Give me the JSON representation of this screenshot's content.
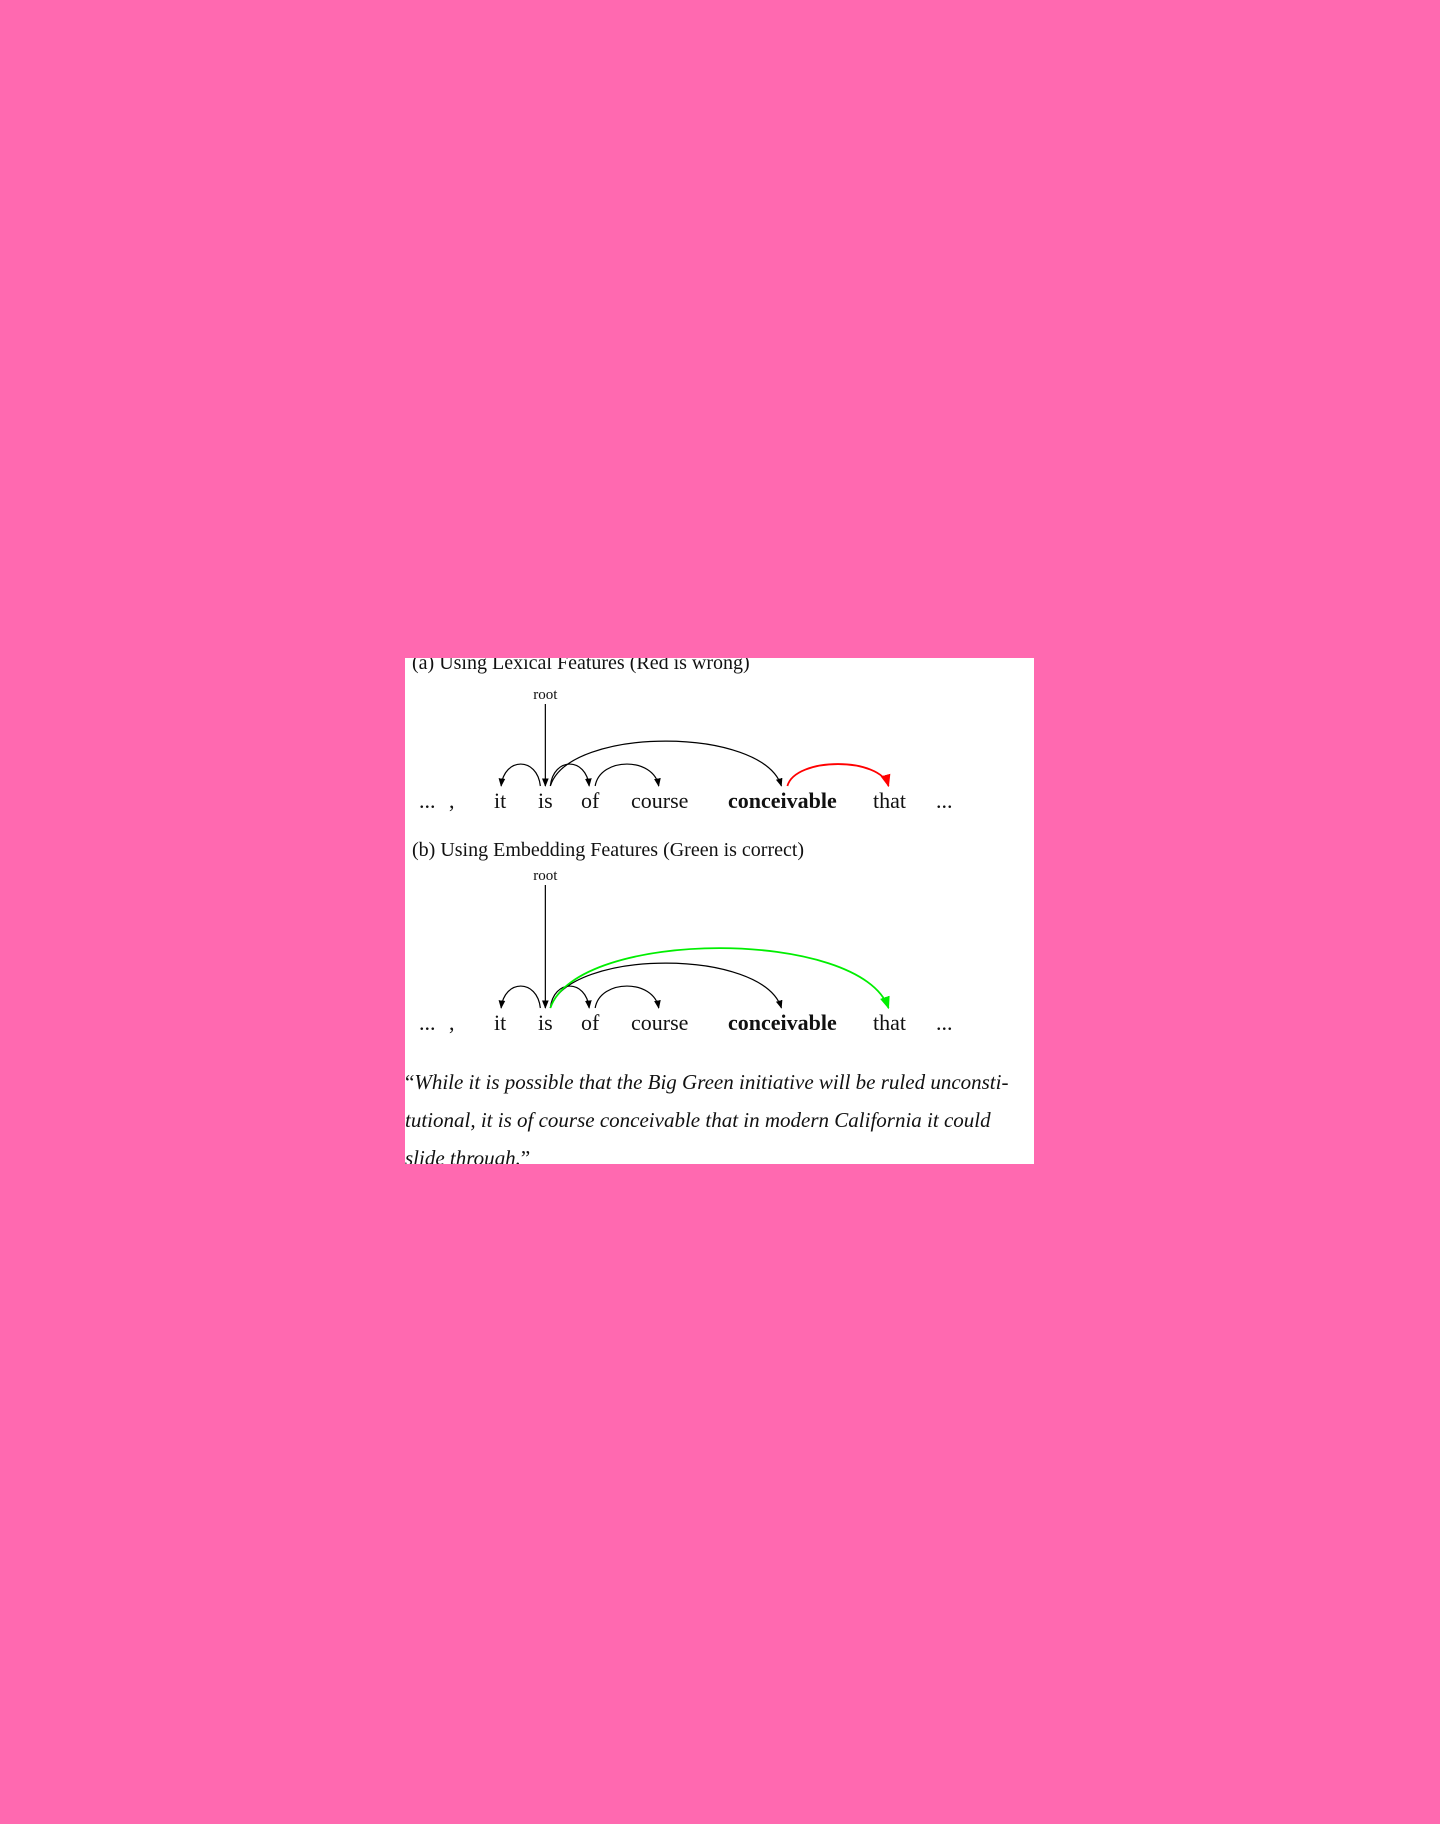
{
  "panel_a": {
    "caption": "(a) Using Lexical Features (Red is wrong)",
    "root_label": "root",
    "tokens": [
      "...",
      ",",
      "it",
      "is",
      "of",
      "course",
      "conceivable",
      "that",
      "..."
    ],
    "arcs": [
      {
        "from": "is",
        "to": "it",
        "color": "#000000"
      },
      {
        "from": "is",
        "to": "of",
        "color": "#000000"
      },
      {
        "from": "of",
        "to": "course",
        "color": "#000000"
      },
      {
        "from": "is",
        "to": "conceivable",
        "color": "#000000"
      },
      {
        "from": "conceivable",
        "to": "that",
        "color": "#ff0000",
        "status": "wrong"
      }
    ]
  },
  "panel_b": {
    "caption": "(b) Using Embedding Features (Green is correct)",
    "root_label": "root",
    "tokens": [
      "...",
      ",",
      "it",
      "is",
      "of",
      "course",
      "conceivable",
      "that",
      "..."
    ],
    "arcs": [
      {
        "from": "is",
        "to": "it",
        "color": "#000000"
      },
      {
        "from": "is",
        "to": "of",
        "color": "#000000"
      },
      {
        "from": "of",
        "to": "course",
        "color": "#000000"
      },
      {
        "from": "is",
        "to": "conceivable",
        "color": "#000000"
      },
      {
        "from": "is",
        "to": "that",
        "color": "#00ee00",
        "status": "correct"
      }
    ]
  },
  "quote": {
    "open_mark": "“",
    "line1": "While it is possible that the Big Green initiative will be ruled unconsti-",
    "line2": "tutional, it is of course conceivable that in modern California it could",
    "line3": "slide through.",
    "close_mark": "”"
  },
  "colors": {
    "background": "#ff69b0",
    "card": "#ffffff",
    "wrong_arc": "#ff0000",
    "correct_arc": "#00ee00"
  }
}
